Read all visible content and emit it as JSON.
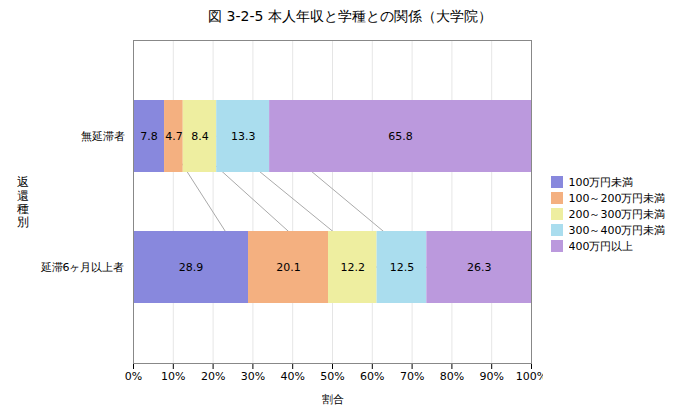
{
  "chart_data": {
    "type": "bar",
    "orientation": "horizontal",
    "stacked": true,
    "title": "図 3-2-5  本人年収と学種との関係（大学院）",
    "xlabel": "割合",
    "ylabel": "返\n還\n種\n別",
    "categories": [
      "無延滞者",
      "延滞6ヶ月以上者"
    ],
    "series": [
      {
        "name": "100万円未満",
        "color": "#8888dd",
        "values": [
          7.8,
          28.9
        ]
      },
      {
        "name": "100～200万円未満",
        "color": "#f4b080",
        "values": [
          4.7,
          20.1
        ]
      },
      {
        "name": "200～300万円未満",
        "color": "#eeeea0",
        "values": [
          8.4,
          12.2
        ]
      },
      {
        "name": "300～400万円未満",
        "color": "#aaddee",
        "values": [
          13.3,
          12.5
        ]
      },
      {
        "name": "400万円以上",
        "color": "#bb99dd",
        "values": [
          65.8,
          26.3
        ]
      }
    ],
    "xlim": [
      0,
      100
    ],
    "xticks": [
      {
        "value": 0,
        "label": "0%"
      },
      {
        "value": 10,
        "label": "10%"
      },
      {
        "value": 20,
        "label": "20%"
      },
      {
        "value": 30,
        "label": "30%"
      },
      {
        "value": 40,
        "label": "40%"
      },
      {
        "value": 50,
        "label": "50%"
      },
      {
        "value": 60,
        "label": "60%"
      },
      {
        "value": 70,
        "label": "70%"
      },
      {
        "value": 80,
        "label": "80%"
      },
      {
        "value": 90,
        "label": "90%"
      },
      {
        "value": 100,
        "label": "100%"
      }
    ],
    "grid": true,
    "data_labels": true,
    "legend": "right"
  }
}
